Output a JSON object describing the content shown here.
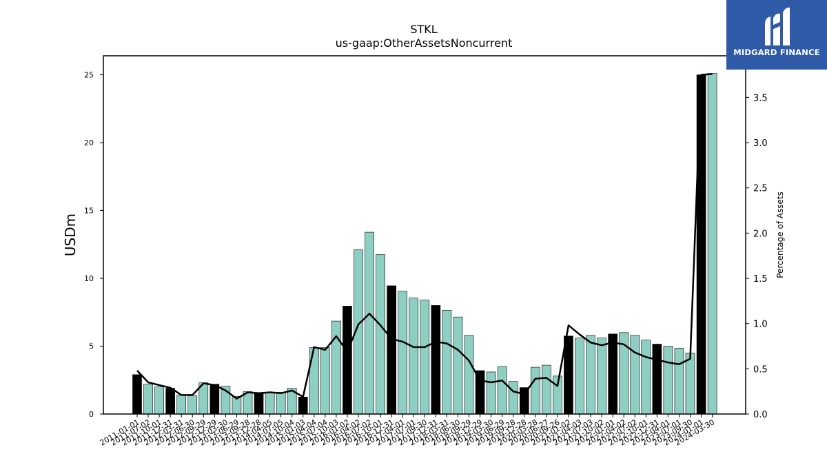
{
  "chart_data": {
    "type": "bar",
    "title": "STKL",
    "subtitle": "us-gaap:OtherAssetsNoncurrent",
    "ylabel": "USDm",
    "y2label": "Percentage of Assets",
    "ylim": [
      0,
      26.4
    ],
    "y2lim": [
      0,
      3.96
    ],
    "yticks": [
      0,
      5,
      10,
      15,
      20,
      25
    ],
    "y2ticks": [
      "0.0",
      "0.5",
      "1.0",
      "1.5",
      "2.0",
      "2.5",
      "3.0",
      "3.5"
    ],
    "grid": false,
    "legend": "none",
    "colors": {
      "annual_bar": "#000000",
      "quarter_bar": "#8ecfc3",
      "bar_edge": "#000000",
      "line": "#000000"
    },
    "categories": [
      "2011-01-01",
      "2011-07-02",
      "2011-10-01",
      "2011-12-31",
      "2012-03-31",
      "2012-06-30",
      "2012-09-29",
      "2012-12-29",
      "2013-03-30",
      "2013-06-29",
      "2013-09-28",
      "2013-12-28",
      "2014-04-05",
      "2014-07-05",
      "2014-10-04",
      "2015-01-03",
      "2015-04-04",
      "2015-07-04",
      "2015-10-03",
      "2016-01-02",
      "2016-04-02",
      "2016-07-02",
      "2016-10-01",
      "2016-12-31",
      "2017-04-01",
      "2017-07-01",
      "2017-09-30",
      "2017-12-31",
      "2018-03-31",
      "2018-06-30",
      "2018-09-29",
      "2018-12-29",
      "2019-03-30",
      "2019-06-29",
      "2019-09-28",
      "2019-12-28",
      "2020-03-28",
      "2020-06-27",
      "2020-09-26",
      "2021-01-02",
      "2021-04-03",
      "2021-07-03",
      "2021-10-02",
      "2022-01-01",
      "2022-04-02",
      "2022-07-02",
      "2022-10-01",
      "2022-12-31",
      "2023-04-01",
      "2023-07-01",
      "2023-09-30",
      "2024-01-01",
      "2024-03-30"
    ],
    "bar_kind": [
      "annual",
      "quarter",
      "quarter",
      "annual",
      "quarter",
      "quarter",
      "quarter",
      "annual",
      "quarter",
      "quarter",
      "quarter",
      "annual",
      "quarter",
      "quarter",
      "quarter",
      "annual",
      "quarter",
      "quarter",
      "quarter",
      "annual",
      "quarter",
      "quarter",
      "quarter",
      "annual",
      "quarter",
      "quarter",
      "quarter",
      "annual",
      "quarter",
      "quarter",
      "quarter",
      "annual",
      "quarter",
      "quarter",
      "quarter",
      "annual",
      "quarter",
      "quarter",
      "quarter",
      "annual",
      "quarter",
      "quarter",
      "quarter",
      "annual",
      "quarter",
      "quarter",
      "quarter",
      "annual",
      "quarter",
      "quarter",
      "quarter",
      "annual",
      "quarter"
    ],
    "series": [
      {
        "values": [
          2.9,
          2.2,
          2.0,
          1.9,
          1.4,
          1.35,
          2.3,
          2.2,
          2.05,
          1.3,
          1.65,
          1.55,
          1.6,
          1.6,
          1.9,
          1.25,
          4.9,
          4.9,
          6.85,
          7.95,
          12.1,
          13.4,
          11.75,
          9.45,
          9.05,
          8.55,
          8.4,
          8.0,
          7.65,
          7.15,
          5.8,
          3.2,
          3.1,
          3.5,
          2.4,
          1.95,
          3.45,
          3.6,
          2.8,
          5.75,
          5.6,
          5.8,
          5.6,
          5.9,
          6.0,
          5.8,
          5.45,
          5.15,
          5.0,
          4.85,
          4.5,
          25.0,
          25.1
        ]
      },
      {
        "type": "line",
        "axis": "right",
        "values": [
          0.48,
          0.35,
          0.32,
          0.29,
          0.21,
          0.21,
          0.34,
          0.32,
          0.26,
          0.17,
          0.24,
          0.23,
          0.24,
          0.23,
          0.26,
          0.19,
          0.74,
          0.71,
          0.86,
          0.69,
          0.99,
          1.11,
          0.98,
          0.83,
          0.8,
          0.74,
          0.74,
          0.8,
          0.78,
          0.71,
          0.59,
          0.37,
          0.35,
          0.37,
          0.25,
          0.22,
          0.39,
          0.4,
          0.31,
          0.98,
          0.88,
          0.79,
          0.76,
          0.79,
          0.77,
          0.68,
          0.63,
          0.6,
          0.57,
          0.55,
          0.61,
          3.75,
          3.76
        ]
      }
    ]
  },
  "logo": {
    "text": "MIDGARD FINANCE"
  }
}
